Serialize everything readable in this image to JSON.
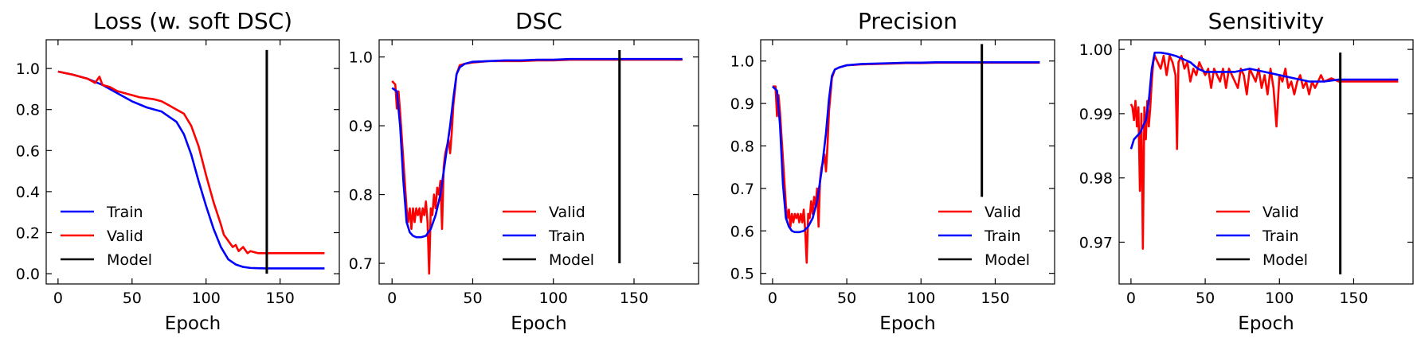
{
  "chart_data": [
    {
      "type": "line",
      "title": "Loss (w. soft DSC)",
      "xlabel": "Epoch",
      "ylabel": "",
      "xlim": [
        -8,
        190
      ],
      "ylim": [
        -0.05,
        1.14
      ],
      "xticks": [
        0,
        50,
        100,
        150
      ],
      "xtick_labels": [
        "0",
        "50",
        "100",
        "150"
      ],
      "yticks": [
        0.0,
        0.2,
        0.4,
        0.6,
        0.8,
        1.0
      ],
      "ytick_labels": [
        "0.0",
        "0.2",
        "0.4",
        "0.6",
        "0.8",
        "1.0"
      ],
      "legend_position": "bottom-left",
      "legend": [
        "Train",
        "Valid",
        "Model"
      ],
      "series": [
        {
          "name": "Train",
          "color": "#0000ff",
          "x": [
            0,
            10,
            20,
            30,
            40,
            50,
            60,
            70,
            80,
            85,
            90,
            95,
            100,
            105,
            110,
            115,
            120,
            125,
            130,
            135,
            140,
            150,
            160,
            170,
            180
          ],
          "y": [
            0.985,
            0.97,
            0.95,
            0.92,
            0.88,
            0.84,
            0.81,
            0.79,
            0.74,
            0.68,
            0.58,
            0.45,
            0.33,
            0.22,
            0.13,
            0.07,
            0.045,
            0.033,
            0.028,
            0.027,
            0.026,
            0.026,
            0.026,
            0.026,
            0.026
          ]
        },
        {
          "name": "Valid",
          "color": "#ff0000",
          "x": [
            0,
            10,
            20,
            25,
            28,
            30,
            35,
            40,
            45,
            50,
            55,
            60,
            65,
            70,
            75,
            80,
            85,
            90,
            95,
            100,
            105,
            110,
            112,
            115,
            118,
            120,
            122,
            125,
            128,
            130,
            135,
            140,
            150,
            160,
            170,
            180
          ],
          "y": [
            0.985,
            0.97,
            0.95,
            0.93,
            0.96,
            0.92,
            0.91,
            0.89,
            0.88,
            0.87,
            0.86,
            0.855,
            0.85,
            0.84,
            0.82,
            0.8,
            0.78,
            0.72,
            0.62,
            0.48,
            0.35,
            0.24,
            0.19,
            0.16,
            0.13,
            0.14,
            0.11,
            0.13,
            0.1,
            0.11,
            0.1,
            0.1,
            0.1,
            0.1,
            0.1,
            0.1
          ]
        },
        {
          "name": "Model",
          "color": "#000000",
          "x": [
            141,
            141
          ],
          "y": [
            0.0,
            1.09
          ]
        }
      ]
    },
    {
      "type": "line",
      "title": "DSC",
      "xlabel": "Epoch",
      "ylabel": "",
      "xlim": [
        -8,
        190
      ],
      "ylim": [
        0.67,
        1.025
      ],
      "xticks": [
        0,
        50,
        100,
        150
      ],
      "xtick_labels": [
        "0",
        "50",
        "100",
        "150"
      ],
      "yticks": [
        0.7,
        0.8,
        0.9,
        1.0
      ],
      "ytick_labels": [
        "0.7",
        "0.8",
        "0.9",
        "1.0"
      ],
      "legend_position": "bottom-right",
      "legend": [
        "Valid",
        "Train",
        "Model"
      ],
      "series": [
        {
          "name": "Valid",
          "color": "#ff0000",
          "x": [
            0,
            2,
            3,
            4,
            5,
            7,
            9,
            10,
            11,
            12,
            13,
            14,
            15,
            16,
            17,
            18,
            19,
            20,
            21,
            22,
            23,
            24,
            25,
            26,
            27,
            28,
            29,
            30,
            31,
            32,
            33,
            34,
            35,
            36,
            37,
            38,
            40,
            42,
            45,
            50,
            60,
            70,
            80,
            90,
            100,
            110,
            120,
            130,
            140,
            150,
            160,
            170,
            180
          ],
          "y": [
            0.965,
            0.96,
            0.925,
            0.95,
            0.92,
            0.85,
            0.78,
            0.76,
            0.78,
            0.75,
            0.78,
            0.76,
            0.78,
            0.77,
            0.78,
            0.76,
            0.78,
            0.77,
            0.79,
            0.76,
            0.685,
            0.78,
            0.77,
            0.8,
            0.78,
            0.81,
            0.8,
            0.82,
            0.75,
            0.84,
            0.86,
            0.87,
            0.88,
            0.86,
            0.89,
            0.93,
            0.975,
            0.988,
            0.99,
            0.992,
            0.994,
            0.994,
            0.994,
            0.995,
            0.995,
            0.996,
            0.996,
            0.996,
            0.996,
            0.996,
            0.996,
            0.996,
            0.996
          ]
        },
        {
          "name": "Train",
          "color": "#0000ff",
          "x": [
            0,
            3,
            5,
            7,
            9,
            11,
            13,
            15,
            18,
            21,
            24,
            27,
            30,
            33,
            36,
            38,
            40,
            42,
            45,
            50,
            60,
            70,
            80,
            90,
            100,
            110,
            120,
            130,
            140,
            150,
            160,
            170,
            180
          ],
          "y": [
            0.955,
            0.95,
            0.9,
            0.82,
            0.76,
            0.745,
            0.74,
            0.738,
            0.738,
            0.74,
            0.75,
            0.77,
            0.8,
            0.85,
            0.9,
            0.94,
            0.975,
            0.985,
            0.99,
            0.993,
            0.994,
            0.995,
            0.995,
            0.996,
            0.996,
            0.997,
            0.997,
            0.997,
            0.997,
            0.997,
            0.997,
            0.997,
            0.997
          ]
        },
        {
          "name": "Model",
          "color": "#000000",
          "x": [
            141,
            141
          ],
          "y": [
            0.7,
            1.01
          ]
        }
      ]
    },
    {
      "type": "line",
      "title": "Precision",
      "xlabel": "Epoch",
      "ylabel": "",
      "xlim": [
        -8,
        190
      ],
      "ylim": [
        0.475,
        1.05
      ],
      "xticks": [
        0,
        50,
        100,
        150
      ],
      "xtick_labels": [
        "0",
        "50",
        "100",
        "150"
      ],
      "yticks": [
        0.5,
        0.6,
        0.7,
        0.8,
        0.9,
        1.0
      ],
      "ytick_labels": [
        "0.5",
        "0.6",
        "0.7",
        "0.8",
        "0.9",
        "1.0"
      ],
      "legend_position": "bottom-right",
      "legend": [
        "Valid",
        "Train",
        "Model"
      ],
      "series": [
        {
          "name": "Valid",
          "color": "#ff0000",
          "x": [
            0,
            2,
            3,
            4,
            5,
            7,
            9,
            10,
            11,
            12,
            13,
            14,
            15,
            16,
            17,
            18,
            19,
            20,
            21,
            22,
            23,
            24,
            25,
            26,
            27,
            28,
            29,
            30,
            31,
            32,
            33,
            34,
            35,
            36,
            37,
            38,
            40,
            42,
            45,
            50,
            60,
            70,
            80,
            90,
            100,
            110,
            120,
            130,
            140,
            150,
            160,
            170,
            180
          ],
          "y": [
            0.94,
            0.94,
            0.87,
            0.92,
            0.88,
            0.77,
            0.66,
            0.63,
            0.65,
            0.61,
            0.64,
            0.62,
            0.64,
            0.63,
            0.64,
            0.62,
            0.64,
            0.62,
            0.65,
            0.6,
            0.525,
            0.64,
            0.63,
            0.67,
            0.64,
            0.68,
            0.66,
            0.7,
            0.61,
            0.72,
            0.75,
            0.76,
            0.78,
            0.74,
            0.8,
            0.88,
            0.96,
            0.98,
            0.985,
            0.99,
            0.992,
            0.993,
            0.994,
            0.995,
            0.995,
            0.996,
            0.996,
            0.996,
            0.996,
            0.996,
            0.996,
            0.996,
            0.996
          ]
        },
        {
          "name": "Train",
          "color": "#0000ff",
          "x": [
            0,
            3,
            5,
            7,
            9,
            11,
            13,
            15,
            18,
            21,
            24,
            27,
            30,
            33,
            36,
            38,
            40,
            42,
            45,
            50,
            60,
            70,
            80,
            90,
            100,
            110,
            120,
            130,
            140,
            150,
            160,
            170,
            180
          ],
          "y": [
            0.94,
            0.93,
            0.85,
            0.71,
            0.63,
            0.61,
            0.6,
            0.597,
            0.597,
            0.6,
            0.61,
            0.63,
            0.67,
            0.74,
            0.83,
            0.91,
            0.965,
            0.98,
            0.985,
            0.99,
            0.993,
            0.994,
            0.995,
            0.996,
            0.996,
            0.997,
            0.997,
            0.997,
            0.997,
            0.997,
            0.997,
            0.997,
            0.997
          ]
        },
        {
          "name": "Model",
          "color": "#000000",
          "x": [
            141,
            141
          ],
          "y": [
            0.68,
            1.04
          ]
        }
      ]
    },
    {
      "type": "line",
      "title": "Sensitivity",
      "xlabel": "Epoch",
      "ylabel": "",
      "xlim": [
        -8,
        190
      ],
      "ylim": [
        0.9635,
        1.0015
      ],
      "xticks": [
        0,
        50,
        100,
        150
      ],
      "xtick_labels": [
        "0",
        "50",
        "100",
        "150"
      ],
      "yticks": [
        0.97,
        0.98,
        0.99,
        1.0
      ],
      "ytick_labels": [
        "0.97",
        "0.98",
        "0.99",
        "1.00"
      ],
      "legend_position": "bottom-center",
      "legend": [
        "Valid",
        "Train",
        "Model"
      ],
      "series": [
        {
          "name": "Valid",
          "color": "#ff0000",
          "x": [
            0,
            1,
            2,
            3,
            4,
            5,
            6,
            7,
            8,
            9,
            10,
            11,
            12,
            13,
            14,
            15,
            16,
            18,
            20,
            22,
            24,
            26,
            28,
            30,
            31,
            32,
            34,
            36,
            38,
            40,
            42,
            44,
            46,
            48,
            50,
            52,
            54,
            56,
            58,
            60,
            62,
            64,
            66,
            68,
            70,
            72,
            74,
            76,
            78,
            80,
            82,
            84,
            86,
            88,
            90,
            92,
            94,
            96,
            98,
            100,
            102,
            104,
            106,
            108,
            110,
            112,
            114,
            116,
            118,
            120,
            122,
            124,
            126,
            128,
            130,
            135,
            140,
            150,
            160,
            170,
            180
          ],
          "y": [
            0.9915,
            0.991,
            0.989,
            0.992,
            0.988,
            0.991,
            0.978,
            0.99,
            0.969,
            0.991,
            0.986,
            0.992,
            0.988,
            0.991,
            0.995,
            0.998,
            0.999,
            0.998,
            0.997,
            0.999,
            0.996,
            0.999,
            0.998,
            0.996,
            0.9845,
            0.998,
            0.999,
            0.997,
            0.998,
            0.995,
            0.997,
            0.996,
            0.998,
            0.997,
            0.996,
            0.997,
            0.994,
            0.997,
            0.996,
            0.995,
            0.997,
            0.994,
            0.997,
            0.996,
            0.995,
            0.994,
            0.997,
            0.996,
            0.993,
            0.997,
            0.996,
            0.995,
            0.997,
            0.994,
            0.996,
            0.993,
            0.997,
            0.994,
            0.988,
            0.996,
            0.995,
            0.997,
            0.994,
            0.995,
            0.993,
            0.995,
            0.996,
            0.994,
            0.995,
            0.993,
            0.995,
            0.994,
            0.995,
            0.996,
            0.995,
            0.9955,
            0.995,
            0.995,
            0.995,
            0.995,
            0.995
          ]
        },
        {
          "name": "Train",
          "color": "#0000ff",
          "x": [
            0,
            2,
            4,
            6,
            8,
            10,
            12,
            14,
            16,
            18,
            20,
            25,
            30,
            35,
            40,
            45,
            50,
            60,
            70,
            80,
            90,
            100,
            110,
            120,
            130,
            140,
            150,
            160,
            170,
            180
          ],
          "y": [
            0.9845,
            0.986,
            0.9865,
            0.987,
            0.988,
            0.989,
            0.992,
            0.997,
            0.9995,
            0.9995,
            0.9995,
            0.9993,
            0.999,
            0.9985,
            0.998,
            0.997,
            0.9965,
            0.9965,
            0.9965,
            0.997,
            0.9965,
            0.996,
            0.9955,
            0.995,
            0.995,
            0.9953,
            0.9953,
            0.9953,
            0.9953,
            0.9953
          ]
        },
        {
          "name": "Model",
          "color": "#000000",
          "x": [
            141,
            141
          ],
          "y": [
            0.965,
            0.9995
          ]
        }
      ]
    }
  ]
}
